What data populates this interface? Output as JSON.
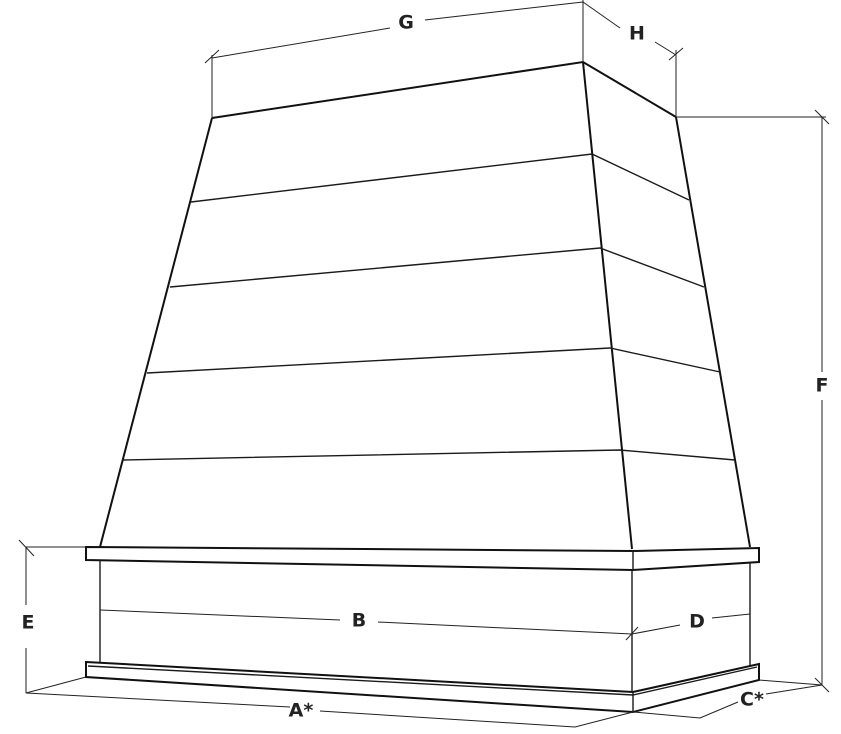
{
  "diagram": {
    "subject": "range hood",
    "labels": {
      "A": "A*",
      "B": "B",
      "C": "C*",
      "D": "D",
      "E": "E",
      "F": "F",
      "G": "G",
      "H": "H"
    }
  }
}
